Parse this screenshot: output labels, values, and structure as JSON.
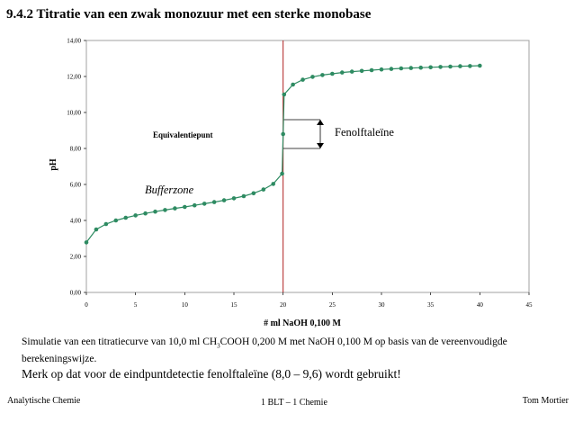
{
  "title": "9.4.2  Titratie van een zwak monozuur met een sterke monobase",
  "chart_data": {
    "type": "line",
    "xlabel": "# ml NaOH 0,100 M",
    "ylabel": "pH",
    "xlim": [
      0,
      45
    ],
    "ylim": [
      0,
      14
    ],
    "x_ticks": [
      "0",
      "5",
      "10",
      "15",
      "20",
      "25",
      "30",
      "35",
      "40",
      "45"
    ],
    "y_ticks": [
      "0,00",
      "2,00",
      "4,00",
      "6,00",
      "8,00",
      "10,00",
      "12,00",
      "14,00"
    ],
    "grid": false,
    "series": [
      {
        "x": [
          0,
          1,
          2,
          3,
          4,
          5,
          6,
          7,
          8,
          9,
          10,
          11,
          12,
          13,
          14,
          15,
          16,
          17,
          18,
          19,
          19.9,
          20,
          20.1,
          21,
          22,
          23,
          24,
          25,
          26,
          27,
          28,
          29,
          30,
          31,
          32,
          33,
          34,
          35,
          36,
          37,
          38,
          39,
          40
        ],
        "y": [
          2.78,
          3.5,
          3.8,
          4.0,
          4.15,
          4.28,
          4.39,
          4.49,
          4.58,
          4.67,
          4.75,
          4.84,
          4.93,
          5.02,
          5.12,
          5.23,
          5.35,
          5.51,
          5.72,
          6.03,
          6.6,
          8.8,
          11.0,
          11.55,
          11.82,
          11.98,
          12.08,
          12.15,
          12.22,
          12.27,
          12.31,
          12.35,
          12.39,
          12.42,
          12.45,
          12.47,
          12.49,
          12.51,
          12.53,
          12.55,
          12.57,
          12.58,
          12.6
        ]
      }
    ],
    "equivalence_x": 20,
    "indicator_range": [
      8.0,
      9.6
    ],
    "annotations": {
      "equivalence": "Equivalentiepunt",
      "buffer": "Bufferzone",
      "indicator": "Fenolftaleïne"
    },
    "colors": {
      "series": "#2e8b62",
      "equivalence_line": "#b22222",
      "frame": "#a0a0a0"
    }
  },
  "caption": {
    "pre": "Simulatie van een titratiecurve van 10,0 ml CH",
    "sub": "3",
    "post": "COOH 0,200 M met NaOH 0,100 M op basis van de vereenvoudigde berekeningswijze."
  },
  "note": "Merk op dat voor de eindpuntdetectie fenolftaleïne (8,0 – 9,6) wordt gebruikt!",
  "footer": {
    "left": "Analytische Chemie",
    "center": "1 BLT – 1 Chemie",
    "right": "Tom Mortier"
  }
}
